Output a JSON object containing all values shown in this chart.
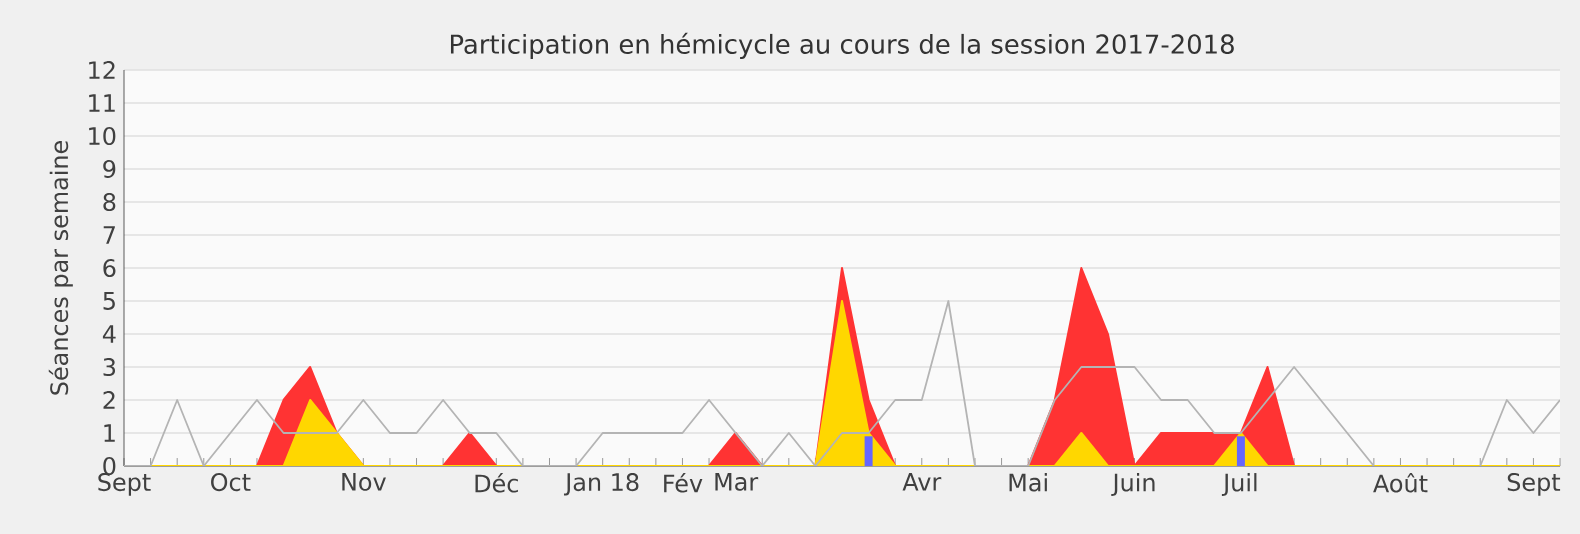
{
  "chart_data": {
    "type": "area",
    "title": "Participation en hémicycle au cours de la session 2017-2018",
    "ylabel": "Séances par semaine",
    "categories": [
      "Sept",
      null,
      null,
      null,
      "Oct",
      null,
      null,
      null,
      null,
      "Nov",
      null,
      null,
      null,
      null,
      "Déc",
      null,
      null,
      null,
      "Jan 18",
      null,
      null,
      "Fév",
      null,
      "Mar",
      null,
      null,
      null,
      null,
      null,
      null,
      "Avr",
      null,
      null,
      null,
      "Mai",
      null,
      null,
      null,
      "Juin",
      null,
      null,
      null,
      "Juil",
      null,
      null,
      null,
      null,
      null,
      "Août",
      null,
      null,
      null,
      null,
      "Sept",
      null
    ],
    "series": [
      {
        "type": "line",
        "color": "#b4b4b4",
        "values": [
          0,
          0,
          2,
          0,
          1,
          2,
          1,
          1,
          1,
          2,
          1,
          1,
          2,
          1,
          1,
          0,
          0,
          0,
          1,
          1,
          1,
          1,
          2,
          1,
          0,
          1,
          0,
          1,
          1,
          2,
          2,
          5,
          0,
          0,
          0,
          2,
          3,
          3,
          3,
          2,
          2,
          1,
          1,
          2,
          3,
          2,
          1,
          0,
          null,
          null,
          null,
          0,
          2,
          1,
          2
        ]
      },
      {
        "color": "#ff3333",
        "values": [
          0,
          0,
          0,
          0,
          0,
          0,
          2,
          3,
          1,
          0,
          0,
          0,
          0,
          1,
          0,
          0,
          0,
          0,
          0,
          0,
          0,
          0,
          0,
          1,
          0,
          0,
          0,
          6,
          2,
          0,
          0,
          0,
          0,
          0,
          0,
          2,
          6,
          4,
          0,
          1,
          1,
          1,
          1,
          3,
          0,
          0,
          0,
          0,
          0,
          0,
          0,
          0,
          0,
          0,
          0
        ]
      },
      {
        "color": "#ffd700",
        "values": [
          0,
          0,
          0,
          0,
          0,
          0,
          0,
          2,
          1,
          0,
          0,
          0,
          0,
          0,
          0,
          0,
          0,
          0,
          0,
          0,
          0,
          0,
          0,
          0,
          0,
          0,
          0,
          5,
          1,
          0,
          0,
          0,
          0,
          0,
          0,
          0,
          1,
          0,
          0,
          0,
          0,
          0,
          1,
          0,
          0,
          0,
          0,
          0,
          0,
          0,
          0,
          0,
          0,
          0,
          0
        ]
      },
      {
        "type": "bar",
        "color": "#6666ff",
        "values": [
          0,
          0,
          0,
          0,
          0,
          0,
          0,
          0,
          0,
          0,
          0,
          0,
          0,
          0,
          0,
          0,
          0,
          0,
          0,
          0,
          0,
          0,
          0,
          0,
          0,
          0,
          0,
          0,
          0.9,
          0,
          0,
          0,
          0,
          0,
          0,
          0,
          0,
          0,
          0,
          0,
          0,
          0,
          0.9,
          0,
          0,
          0,
          0,
          0,
          0,
          0,
          0,
          0,
          0,
          0,
          0
        ]
      }
    ],
    "ylim": [
      0,
      12
    ],
    "yticks": [
      0,
      1,
      2,
      3,
      4,
      5,
      6,
      7,
      8,
      9,
      10,
      11,
      12
    ],
    "grid": "y"
  }
}
